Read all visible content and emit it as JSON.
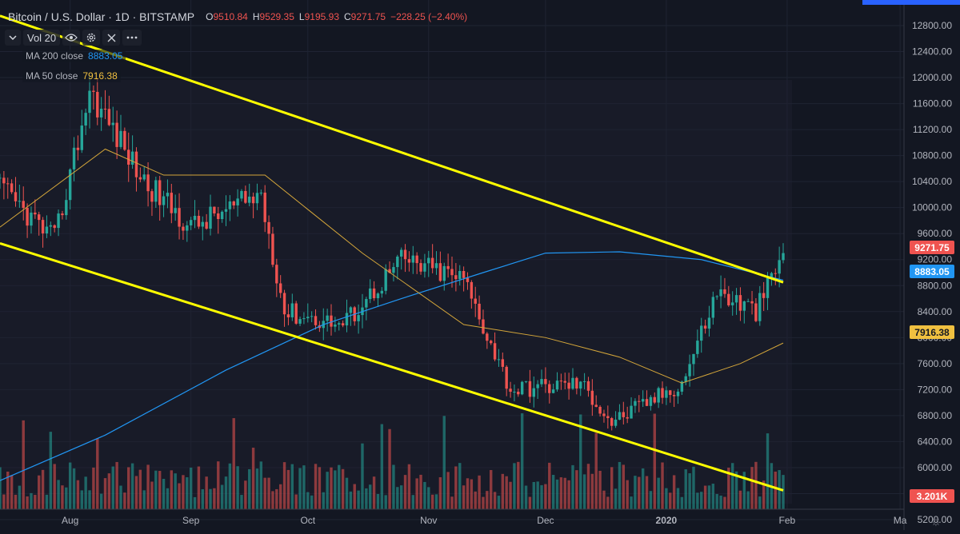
{
  "header": {
    "symbol_title": "Bitcoin / U.S. Dollar · 1D · BITSTAMP",
    "open_key": "O",
    "open_val": "9510.84",
    "high_key": "H",
    "high_val": "9529.35",
    "low_key": "L",
    "low_val": "9195.93",
    "close_key": "C",
    "close_val": "9271.75",
    "change": "−228.25 (−2.40%)"
  },
  "toolbar": {
    "collapse_icon": "chevron-down-icon",
    "vol_label": "Vol 20",
    "eye_icon": "eye-icon",
    "settings_icon": "gear-icon",
    "close_icon": "close-icon",
    "more_icon": "more-icon"
  },
  "indicators": {
    "ma200_label": "MA 200 close",
    "ma200_value": "8883.05",
    "ma50_label": "MA 50 close",
    "ma50_value": "7916.38"
  },
  "price_axis": {
    "ticks": [
      "12800.00",
      "12400.00",
      "12000.00",
      "11600.00",
      "11200.00",
      "10800.00",
      "10400.00",
      "10000.00",
      "9600.00",
      "9200.00",
      "8800.00",
      "8400.00",
      "8000.00",
      "7600.00",
      "7200.00",
      "6800.00",
      "6400.00",
      "6000.00",
      "5600.00",
      "5200.00"
    ],
    "last_price_tag": "9271.75",
    "ma200_tag": "8883.05",
    "ma50_tag": "7916.38",
    "volume_tag": "3.201K"
  },
  "time_axis": {
    "labels": [
      "Aug",
      "Sep",
      "Oct",
      "Nov",
      "Dec",
      "2020",
      "Feb",
      "Ma"
    ]
  },
  "colors": {
    "background": "#131722",
    "up": "#26a69a",
    "down": "#ef5350",
    "ma200": "#2196f3",
    "ma50": "#d4a63a",
    "trendline": "#ffff00",
    "accent": "#2962ff"
  },
  "chart_data": {
    "type": "candlestick",
    "title": "Bitcoin / U.S. Dollar · 1D · BITSTAMP",
    "ylim": [
      5200,
      13000
    ],
    "x_range": [
      "2019-07-14",
      "2020-03-02"
    ],
    "candles_summary": [
      {
        "date": "2019-07-14",
        "close": 10300
      },
      {
        "date": "2019-07-28",
        "close": 9500
      },
      {
        "date": "2019-08-06",
        "close": 11800
      },
      {
        "date": "2019-08-20",
        "close": 10400
      },
      {
        "date": "2019-09-01",
        "close": 9700
      },
      {
        "date": "2019-09-19",
        "close": 10200
      },
      {
        "date": "2019-09-25",
        "close": 8400
      },
      {
        "date": "2019-10-10",
        "close": 8200
      },
      {
        "date": "2019-10-25",
        "close": 9200
      },
      {
        "date": "2019-11-10",
        "close": 8900
      },
      {
        "date": "2019-11-22",
        "close": 7200
      },
      {
        "date": "2019-12-10",
        "close": 7300
      },
      {
        "date": "2019-12-18",
        "close": 6700
      },
      {
        "date": "2020-01-05",
        "close": 7300
      },
      {
        "date": "2020-01-14",
        "close": 8700
      },
      {
        "date": "2020-01-24",
        "close": 8400
      },
      {
        "date": "2020-01-31",
        "close": 9271.75
      }
    ],
    "series": [
      {
        "name": "MA 200 close",
        "last": 8883.05,
        "x": [
          "2019-07-14",
          "2019-08-10",
          "2019-09-10",
          "2019-10-05",
          "2019-10-25",
          "2019-11-15",
          "2019-12-01",
          "2019-12-20",
          "2020-01-10",
          "2020-01-31"
        ],
        "values": [
          5800,
          6500,
          7500,
          8200,
          8600,
          9000,
          9300,
          9320,
          9200,
          8883.05
        ]
      },
      {
        "name": "MA 50 close",
        "last": 7916.38,
        "x": [
          "2019-07-14",
          "2019-08-10",
          "2019-08-25",
          "2019-09-20",
          "2019-10-15",
          "2019-11-10",
          "2019-12-01",
          "2019-12-20",
          "2020-01-05",
          "2020-01-20",
          "2020-01-31"
        ],
        "values": [
          9700,
          10900,
          10500,
          10500,
          9300,
          8200,
          8000,
          7700,
          7300,
          7600,
          7916.38
        ]
      }
    ],
    "trendlines": [
      {
        "from": [
          "2019-07-14",
          12950
        ],
        "to": [
          "2020-01-31",
          8850
        ]
      },
      {
        "from": [
          "2019-07-14",
          9450
        ],
        "to": [
          "2020-01-31",
          5650
        ]
      }
    ]
  }
}
